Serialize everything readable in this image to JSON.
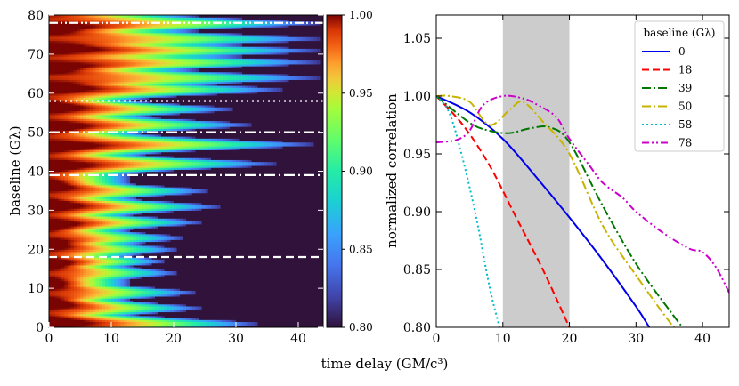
{
  "chart_data": [
    {
      "type": "heatmap",
      "title": "",
      "xlabel": "",
      "ylabel": "baseline (Gλ)",
      "xlim": [
        0,
        44
      ],
      "ylim": [
        0,
        80
      ],
      "xticks": [
        0,
        10,
        20,
        30,
        40
      ],
      "yticks": [
        0,
        10,
        20,
        30,
        40,
        50,
        60,
        70,
        80
      ],
      "colorbar": {
        "range": [
          0.8,
          1.0
        ],
        "ticks": [
          "0.80",
          "0.85",
          "0.90",
          "0.95",
          "1.00"
        ]
      },
      "marker_lines": [
        {
          "baseline": 18,
          "style": "dashed"
        },
        {
          "baseline": 39,
          "style": "dashdot"
        },
        {
          "baseline": 50,
          "style": "dashdot"
        },
        {
          "baseline": 58,
          "style": "dotted"
        },
        {
          "baseline": 78,
          "style": "dashdotdot"
        }
      ],
      "ridge_ends": [
        {
          "baseline": 1,
          "delay": 34
        },
        {
          "baseline": 5,
          "delay": 25
        },
        {
          "baseline": 9,
          "delay": 24
        },
        {
          "baseline": 14,
          "delay": 21
        },
        {
          "baseline": 17,
          "delay": 19
        },
        {
          "baseline": 20,
          "delay": 21
        },
        {
          "baseline": 23,
          "delay": 22
        },
        {
          "baseline": 27,
          "delay": 25
        },
        {
          "baseline": 31,
          "delay": 28
        },
        {
          "baseline": 35,
          "delay": 26
        },
        {
          "baseline": 42,
          "delay": 37
        },
        {
          "baseline": 47,
          "delay": 43
        },
        {
          "baseline": 52,
          "delay": 33
        },
        {
          "baseline": 56,
          "delay": 30
        },
        {
          "baseline": 61,
          "delay": 38
        },
        {
          "baseline": 64,
          "delay": 44
        },
        {
          "baseline": 68,
          "delay": 44
        },
        {
          "baseline": 71,
          "delay": 44
        },
        {
          "baseline": 74,
          "delay": 44
        },
        {
          "baseline": 78,
          "delay": 44
        }
      ]
    },
    {
      "type": "line",
      "title": "",
      "xlabel": "time delay (GM/c³)",
      "ylabel": "normalized correlation",
      "xlim": [
        0,
        44
      ],
      "ylim": [
        0.8,
        1.07
      ],
      "xticks": [
        0,
        10,
        20,
        30,
        40
      ],
      "yticks": [
        "0.80",
        "0.85",
        "0.90",
        "0.95",
        "1.00",
        "1.05"
      ],
      "shaded_region": [
        10,
        20
      ],
      "legend_title": "baseline (Gλ)",
      "legend_position": "top-right",
      "series": [
        {
          "name": "0",
          "color": "#0000ee",
          "dash": "solid",
          "x": [
            0,
            5,
            10,
            15,
            20,
            25,
            30,
            32
          ],
          "y": [
            1.0,
            0.986,
            0.963,
            0.93,
            0.895,
            0.858,
            0.818,
            0.8
          ]
        },
        {
          "name": "18",
          "color": "#ff0000",
          "dash": "dashed",
          "x": [
            0,
            4,
            8,
            12,
            16,
            20
          ],
          "y": [
            1.0,
            0.975,
            0.94,
            0.895,
            0.85,
            0.8
          ]
        },
        {
          "name": "39",
          "color": "#007700",
          "dash": "dashdot",
          "x": [
            0,
            5,
            8,
            11,
            14,
            17,
            20,
            25,
            30,
            35,
            37
          ],
          "y": [
            1.0,
            0.977,
            0.97,
            0.968,
            0.972,
            0.973,
            0.96,
            0.905,
            0.855,
            0.815,
            0.8
          ]
        },
        {
          "name": "50",
          "color": "#c8b400",
          "dash": "dashdot",
          "x": [
            0,
            2,
            5,
            8,
            11,
            13,
            16,
            20,
            25,
            30,
            35,
            36
          ],
          "y": [
            1.0,
            1.0,
            0.995,
            0.975,
            0.988,
            0.995,
            0.978,
            0.95,
            0.888,
            0.845,
            0.805,
            0.8
          ]
        },
        {
          "name": "58",
          "color": "#00bbcc",
          "dash": "dotted",
          "x": [
            0,
            2,
            4,
            6,
            8,
            9.5
          ],
          "y": [
            1.0,
            0.985,
            0.945,
            0.895,
            0.835,
            0.8
          ]
        },
        {
          "name": "78",
          "color": "#cc00cc",
          "dash": "dashdotdot",
          "x": [
            0,
            3,
            5,
            7,
            10,
            13,
            15,
            18,
            20,
            23,
            25,
            28,
            30,
            34,
            38,
            40,
            42,
            44
          ],
          "y": [
            0.96,
            0.962,
            0.97,
            0.992,
            1.0,
            0.998,
            0.993,
            0.982,
            0.963,
            0.94,
            0.925,
            0.912,
            0.9,
            0.882,
            0.868,
            0.865,
            0.852,
            0.83
          ]
        }
      ]
    }
  ],
  "shared_xlabel": "time delay (GM/c³)"
}
